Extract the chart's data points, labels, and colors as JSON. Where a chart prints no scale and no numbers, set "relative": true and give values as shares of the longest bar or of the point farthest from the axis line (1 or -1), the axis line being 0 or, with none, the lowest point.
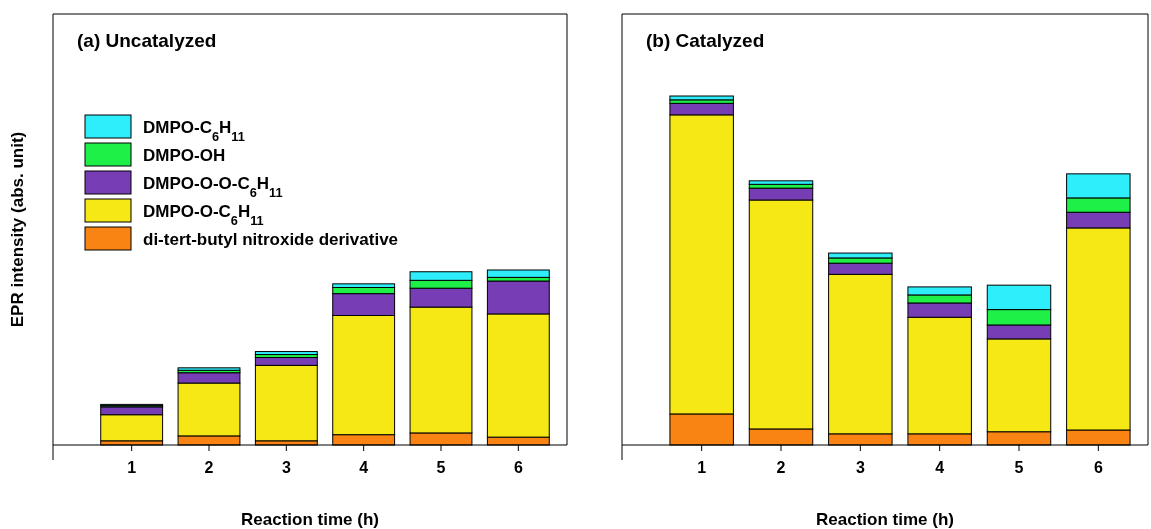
{
  "chart_data": [
    {
      "type": "bar",
      "title": "(a) Uncatalyzed",
      "xlabel": "Reaction time (h)",
      "ylabel": "EPR intensity (abs. unit)",
      "categories": [
        "1",
        "2",
        "3",
        "4",
        "5",
        "6"
      ],
      "stacked": true,
      "relative": true,
      "legend": "top left",
      "series": [
        {
          "name": "di-tert-butyl nitroxide derivative",
          "color": "#f98414",
          "values": [
            0.024,
            0.052,
            0.024,
            0.059,
            0.069,
            0.045
          ]
        },
        {
          "name": "DMPO-O-C$_{6}$H$_{11}$",
          "color": "#f5e814",
          "values": [
            0.149,
            0.302,
            0.431,
            0.681,
            0.719,
            0.704
          ]
        },
        {
          "name": "DMPO-O-O-C$_{6}$H$_{11}$",
          "color": "#773db5",
          "values": [
            0.045,
            0.059,
            0.045,
            0.125,
            0.108,
            0.188
          ]
        },
        {
          "name": "DMPO-OH",
          "color": "#1ef048",
          "values": [
            0.007,
            0.014,
            0.017,
            0.035,
            0.045,
            0.021
          ]
        },
        {
          "name": "DMPO-C$_{6}$H$_{11}$",
          "color": "#2eeefc",
          "values": [
            0.007,
            0.014,
            0.017,
            0.021,
            0.049,
            0.042
          ]
        }
      ]
    },
    {
      "type": "bar",
      "title": "(b) Catalyzed",
      "xlabel": "Reaction time (h)",
      "categories": [
        "1",
        "2",
        "3",
        "4",
        "5",
        "6"
      ],
      "stacked": true,
      "relative": true,
      "series": [
        {
          "color": "#f98414",
          "values": [
            0.089,
            0.046,
            0.032,
            0.032,
            0.038,
            0.043
          ]
        },
        {
          "color": "#f5e814",
          "values": [
            0.857,
            0.656,
            0.457,
            0.334,
            0.266,
            0.579
          ]
        },
        {
          "color": "#773db5",
          "values": [
            0.033,
            0.034,
            0.032,
            0.041,
            0.04,
            0.045
          ]
        },
        {
          "color": "#1ef048",
          "values": [
            0.01,
            0.011,
            0.015,
            0.023,
            0.044,
            0.041
          ]
        },
        {
          "color": "#2eeefc",
          "values": [
            0.011,
            0.01,
            0.014,
            0.023,
            0.07,
            0.069
          ]
        }
      ]
    }
  ]
}
